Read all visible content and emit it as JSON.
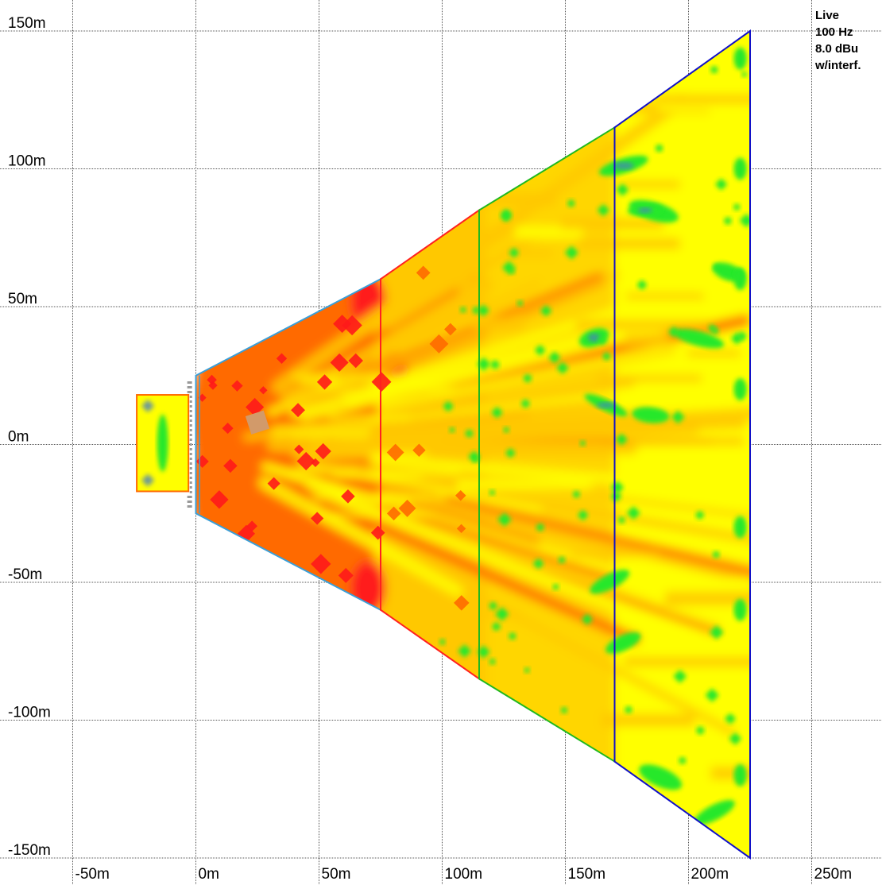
{
  "legend": {
    "lines": [
      "Live",
      "100 Hz",
      "8.0 dBu",
      "w/interf."
    ]
  },
  "axes": {
    "x_ticks": [
      {
        "value": -50,
        "label": "-50m"
      },
      {
        "value": 0,
        "label": "0m"
      },
      {
        "value": 50,
        "label": "50m"
      },
      {
        "value": 100,
        "label": "100m"
      },
      {
        "value": 150,
        "label": "150m"
      },
      {
        "value": 200,
        "label": "200m"
      },
      {
        "value": 250,
        "label": "250m"
      }
    ],
    "y_ticks": [
      {
        "value": 150,
        "label": "150m"
      },
      {
        "value": 100,
        "label": "100m"
      },
      {
        "value": 50,
        "label": "50m"
      },
      {
        "value": 0,
        "label": "0m"
      },
      {
        "value": -50,
        "label": "-50m"
      },
      {
        "value": -100,
        "label": "-100m"
      },
      {
        "value": -150,
        "label": "-150m"
      }
    ],
    "x_range": [
      -80,
      285
    ],
    "y_range": [
      -157,
      160
    ],
    "grid": true
  },
  "colors": {
    "level_very_high": "#ff1a1a",
    "level_high": "#ff6a00",
    "level_mid": "#ffc800",
    "level_low": "#ffff00",
    "level_lower": "#27e82a",
    "level_lowest": "#4a7fc0",
    "zone1_edge": "#3a9fd8",
    "zone2_edge": "#ff2020",
    "zone3_edge": "#1fb81f",
    "zone4_edge": "#1010c8",
    "stage_edge": "#ff6a00",
    "stage_fill": "#ff8c00",
    "speakers": "#999999"
  },
  "zones": [
    {
      "id": "zone-1",
      "x0": 0,
      "x1": 75,
      "h0": 25,
      "h1": 60
    },
    {
      "id": "zone-2",
      "x0": 75,
      "x1": 115,
      "h0": 60,
      "h1": 85
    },
    {
      "id": "zone-3",
      "x0": 115,
      "x1": 170,
      "h0": 85,
      "h1": 115
    },
    {
      "id": "zone-4",
      "x0": 170,
      "x1": 225,
      "h0": 115,
      "h1": 150
    }
  ],
  "stage": {
    "x0": -24,
    "x1": -3,
    "y0": -17,
    "y1": 18
  }
}
